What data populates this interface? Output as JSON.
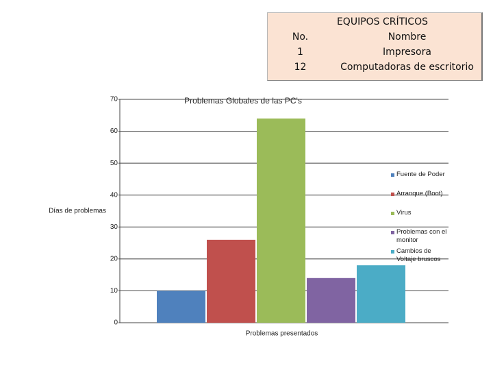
{
  "table": {
    "title": "EQUIPOS CRÍTICOS",
    "header": [
      "No.",
      "Nombre"
    ],
    "rows": [
      [
        "1",
        "Impresora"
      ],
      [
        "12",
        "Computadoras de escritorio"
      ]
    ]
  },
  "chart_data": {
    "type": "bar",
    "title": "Problemas Globales  de las PC's",
    "y_label": "Días de problemas",
    "categories": [
      "Problemas presentados"
    ],
    "series": [
      {
        "name": "Fuente de Poder",
        "color": "#4f81bd",
        "values": [
          10
        ]
      },
      {
        "name": "Arranque (Boot)",
        "color": "#c0504d",
        "values": [
          26
        ]
      },
      {
        "name": "Virus",
        "color": "#9bbb59",
        "values": [
          64
        ]
      },
      {
        "name": "Problemas con el monitor",
        "color": "#8064a2",
        "values": [
          14
        ]
      },
      {
        "name": "Cambios de Voltaje bruscos",
        "color": "#4bacc6",
        "values": [
          18
        ]
      }
    ],
    "ylim": [
      0,
      70
    ],
    "yticks": [
      0,
      10,
      20,
      30,
      40,
      50,
      60,
      70
    ],
    "grid": true,
    "legend": "right"
  }
}
